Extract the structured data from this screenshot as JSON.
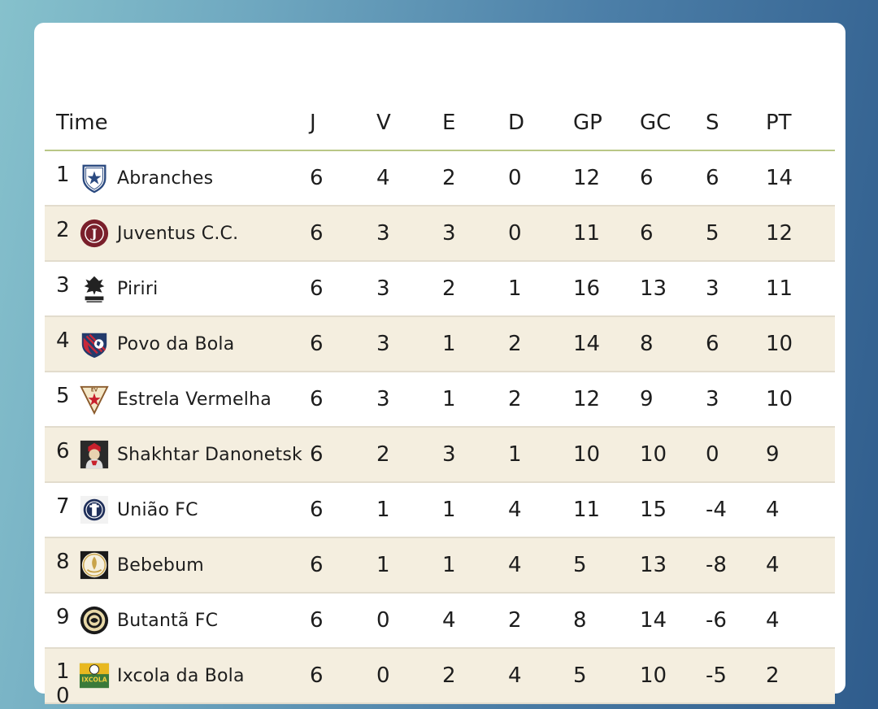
{
  "table": {
    "headers": [
      "Time",
      "J",
      "V",
      "E",
      "D",
      "GP",
      "GC",
      "S",
      "PT"
    ],
    "rows": [
      {
        "pos": "1",
        "team": "Abranches",
        "crest": "abranches-crest-icon",
        "J": "6",
        "V": "4",
        "E": "2",
        "D": "0",
        "GP": "12",
        "GC": "6",
        "S": "6",
        "PT": "14"
      },
      {
        "pos": "2",
        "team": "Juventus C.C.",
        "crest": "juventus-crest-icon",
        "J": "6",
        "V": "3",
        "E": "3",
        "D": "0",
        "GP": "11",
        "GC": "6",
        "S": "5",
        "PT": "12"
      },
      {
        "pos": "3",
        "team": "Piriri",
        "crest": "piriri-crest-icon",
        "J": "6",
        "V": "3",
        "E": "2",
        "D": "1",
        "GP": "16",
        "GC": "13",
        "S": "3",
        "PT": "11"
      },
      {
        "pos": "4",
        "team": "Povo da Bola",
        "crest": "povo-da-bola-crest-icon",
        "J": "6",
        "V": "3",
        "E": "1",
        "D": "2",
        "GP": "14",
        "GC": "8",
        "S": "6",
        "PT": "10"
      },
      {
        "pos": "5",
        "team": "Estrela Vermelha",
        "crest": "estrela-vermelha-crest-icon",
        "J": "6",
        "V": "3",
        "E": "1",
        "D": "2",
        "GP": "12",
        "GC": "9",
        "S": "3",
        "PT": "10"
      },
      {
        "pos": "6",
        "team": "Shakhtar Danonetsk",
        "crest": "shakhtar-danonetsk-crest-icon",
        "J": "6",
        "V": "2",
        "E": "3",
        "D": "1",
        "GP": "10",
        "GC": "10",
        "S": "0",
        "PT": "9"
      },
      {
        "pos": "7",
        "team": "União FC",
        "crest": "uniao-fc-crest-icon",
        "J": "6",
        "V": "1",
        "E": "1",
        "D": "4",
        "GP": "11",
        "GC": "15",
        "S": "-4",
        "PT": "4"
      },
      {
        "pos": "8",
        "team": "Bebebum",
        "crest": "bebebum-crest-icon",
        "J": "6",
        "V": "1",
        "E": "1",
        "D": "4",
        "GP": "5",
        "GC": "13",
        "S": "-8",
        "PT": "4"
      },
      {
        "pos": "9",
        "team": "Butantã FC",
        "crest": "butanta-fc-crest-icon",
        "J": "6",
        "V": "0",
        "E": "4",
        "D": "2",
        "GP": "8",
        "GC": "14",
        "S": "-6",
        "PT": "4"
      },
      {
        "pos": "10",
        "team": "Ixcola da Bola",
        "crest": "ixcola-da-bola-crest-icon",
        "J": "6",
        "V": "0",
        "E": "2",
        "D": "4",
        "GP": "5",
        "GC": "10",
        "S": "-5",
        "PT": "2"
      }
    ]
  },
  "crest_text": {
    "juventus": "J",
    "estrela": "EV",
    "ixcola": "IXCOLA"
  },
  "colors": {
    "header_rule": "#b9c786",
    "alt_row": "#f4eedf",
    "row_rule": "#e2dccd"
  }
}
